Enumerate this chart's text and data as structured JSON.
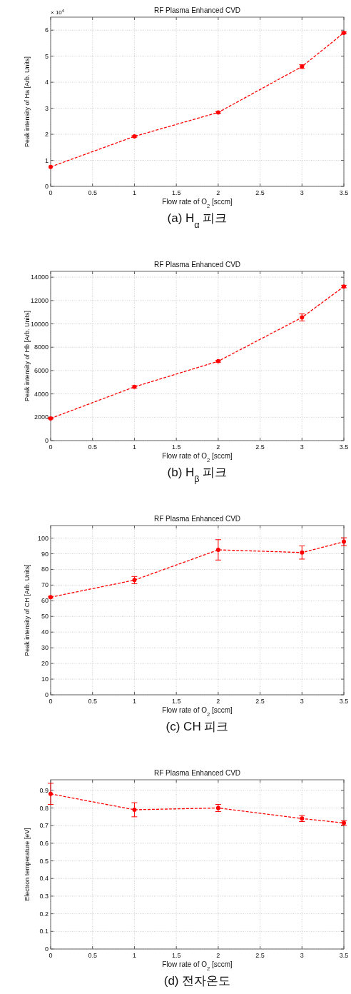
{
  "chart_data": [
    {
      "type": "line",
      "title": "RF Plasma Enhanced CVD",
      "xlabel": "Flow rate of O$_{2}$ [sccm]",
      "ylabel": "Peak intensity of Ha [Arb. Units]",
      "x": [
        0,
        1,
        2,
        3,
        3.5
      ],
      "series": [
        {
          "color": "#ff0000",
          "values": [
            0.75,
            1.92,
            2.84,
            4.6,
            5.9
          ],
          "errors": [
            null,
            0.03,
            0.03,
            0.07,
            0.03
          ]
        }
      ],
      "xlim": [
        0,
        3.5
      ],
      "xticks": [
        0,
        0.5,
        1,
        1.5,
        2,
        2.5,
        3,
        3.5
      ],
      "ylim": [
        0,
        6.5
      ],
      "yticks": [
        0,
        1,
        2,
        3,
        4,
        5,
        6
      ],
      "grid": true,
      "marker": "circle",
      "line_style": "dashed",
      "annotations": [
        "× 10$^{4}$",
        "(a) H$_{α}$ 피크"
      ]
    },
    {
      "type": "line",
      "title": "RF Plasma Enhanced CVD",
      "xlabel": "Flow rate of O$_{2}$ [sccm]",
      "ylabel": "Peak intensity of Hb [Arb. Units]",
      "x": [
        0,
        1,
        2,
        3,
        3.5
      ],
      "series": [
        {
          "color": "#ff0000",
          "values": [
            1900,
            4600,
            6800,
            10550,
            13200
          ],
          "errors": [
            50,
            100,
            80,
            300,
            100
          ]
        }
      ],
      "xlim": [
        0,
        3.5
      ],
      "xticks": [
        0,
        0.5,
        1,
        1.5,
        2,
        2.5,
        3,
        3.5
      ],
      "ylim": [
        0,
        14500
      ],
      "yticks": [
        0,
        2000,
        4000,
        6000,
        8000,
        10000,
        12000,
        14000
      ],
      "grid": true,
      "marker": "circle",
      "line_style": "dashed",
      "annotations": [
        "(b) H$_{β}$ 피크"
      ]
    },
    {
      "type": "line",
      "title": "RF Plasma Enhanced CVD",
      "xlabel": "Flow rate of O$_{2}$ [sccm]",
      "ylabel": "Peak intensity of CH [Arb. Units]",
      "x": [
        0,
        1,
        2,
        3,
        3.5
      ],
      "series": [
        {
          "color": "#ff0000",
          "values": [
            62.3,
            73.2,
            92.5,
            90.8,
            97.7
          ],
          "errors": [
            0.5,
            2.3,
            6.5,
            4.2,
            2.5
          ]
        }
      ],
      "xlim": [
        0,
        3.5
      ],
      "xticks": [
        0,
        0.5,
        1,
        1.5,
        2,
        2.5,
        3,
        3.5
      ],
      "ylim": [
        0,
        108
      ],
      "yticks": [
        0,
        10,
        20,
        30,
        40,
        50,
        60,
        70,
        80,
        90,
        100
      ],
      "grid": true,
      "marker": "circle",
      "line_style": "dashed",
      "annotations": [
        "(c) CH 피크"
      ]
    },
    {
      "type": "line",
      "title": "RF Plasma Enhanced CVD",
      "xlabel": "Flow rate of O$_{2}$ [sccm]",
      "ylabel": "Electron temperature [eV]",
      "x": [
        0,
        1,
        2,
        3,
        3.5
      ],
      "series": [
        {
          "color": "#ff0000",
          "values": [
            0.88,
            0.79,
            0.8,
            0.74,
            0.715
          ],
          "errors": [
            0.06,
            0.04,
            0.02,
            0.017,
            0.013
          ]
        }
      ],
      "xlim": [
        0,
        3.5
      ],
      "xticks": [
        0,
        0.5,
        1,
        1.5,
        2,
        2.5,
        3,
        3.5
      ],
      "ylim": [
        0,
        0.96
      ],
      "yticks": [
        0,
        0.1,
        0.2,
        0.3,
        0.4,
        0.5,
        0.6,
        0.7,
        0.8,
        0.9
      ],
      "grid": true,
      "marker": "circle",
      "line_style": "dashed",
      "annotations": [
        "(d) 전자온도"
      ]
    }
  ]
}
